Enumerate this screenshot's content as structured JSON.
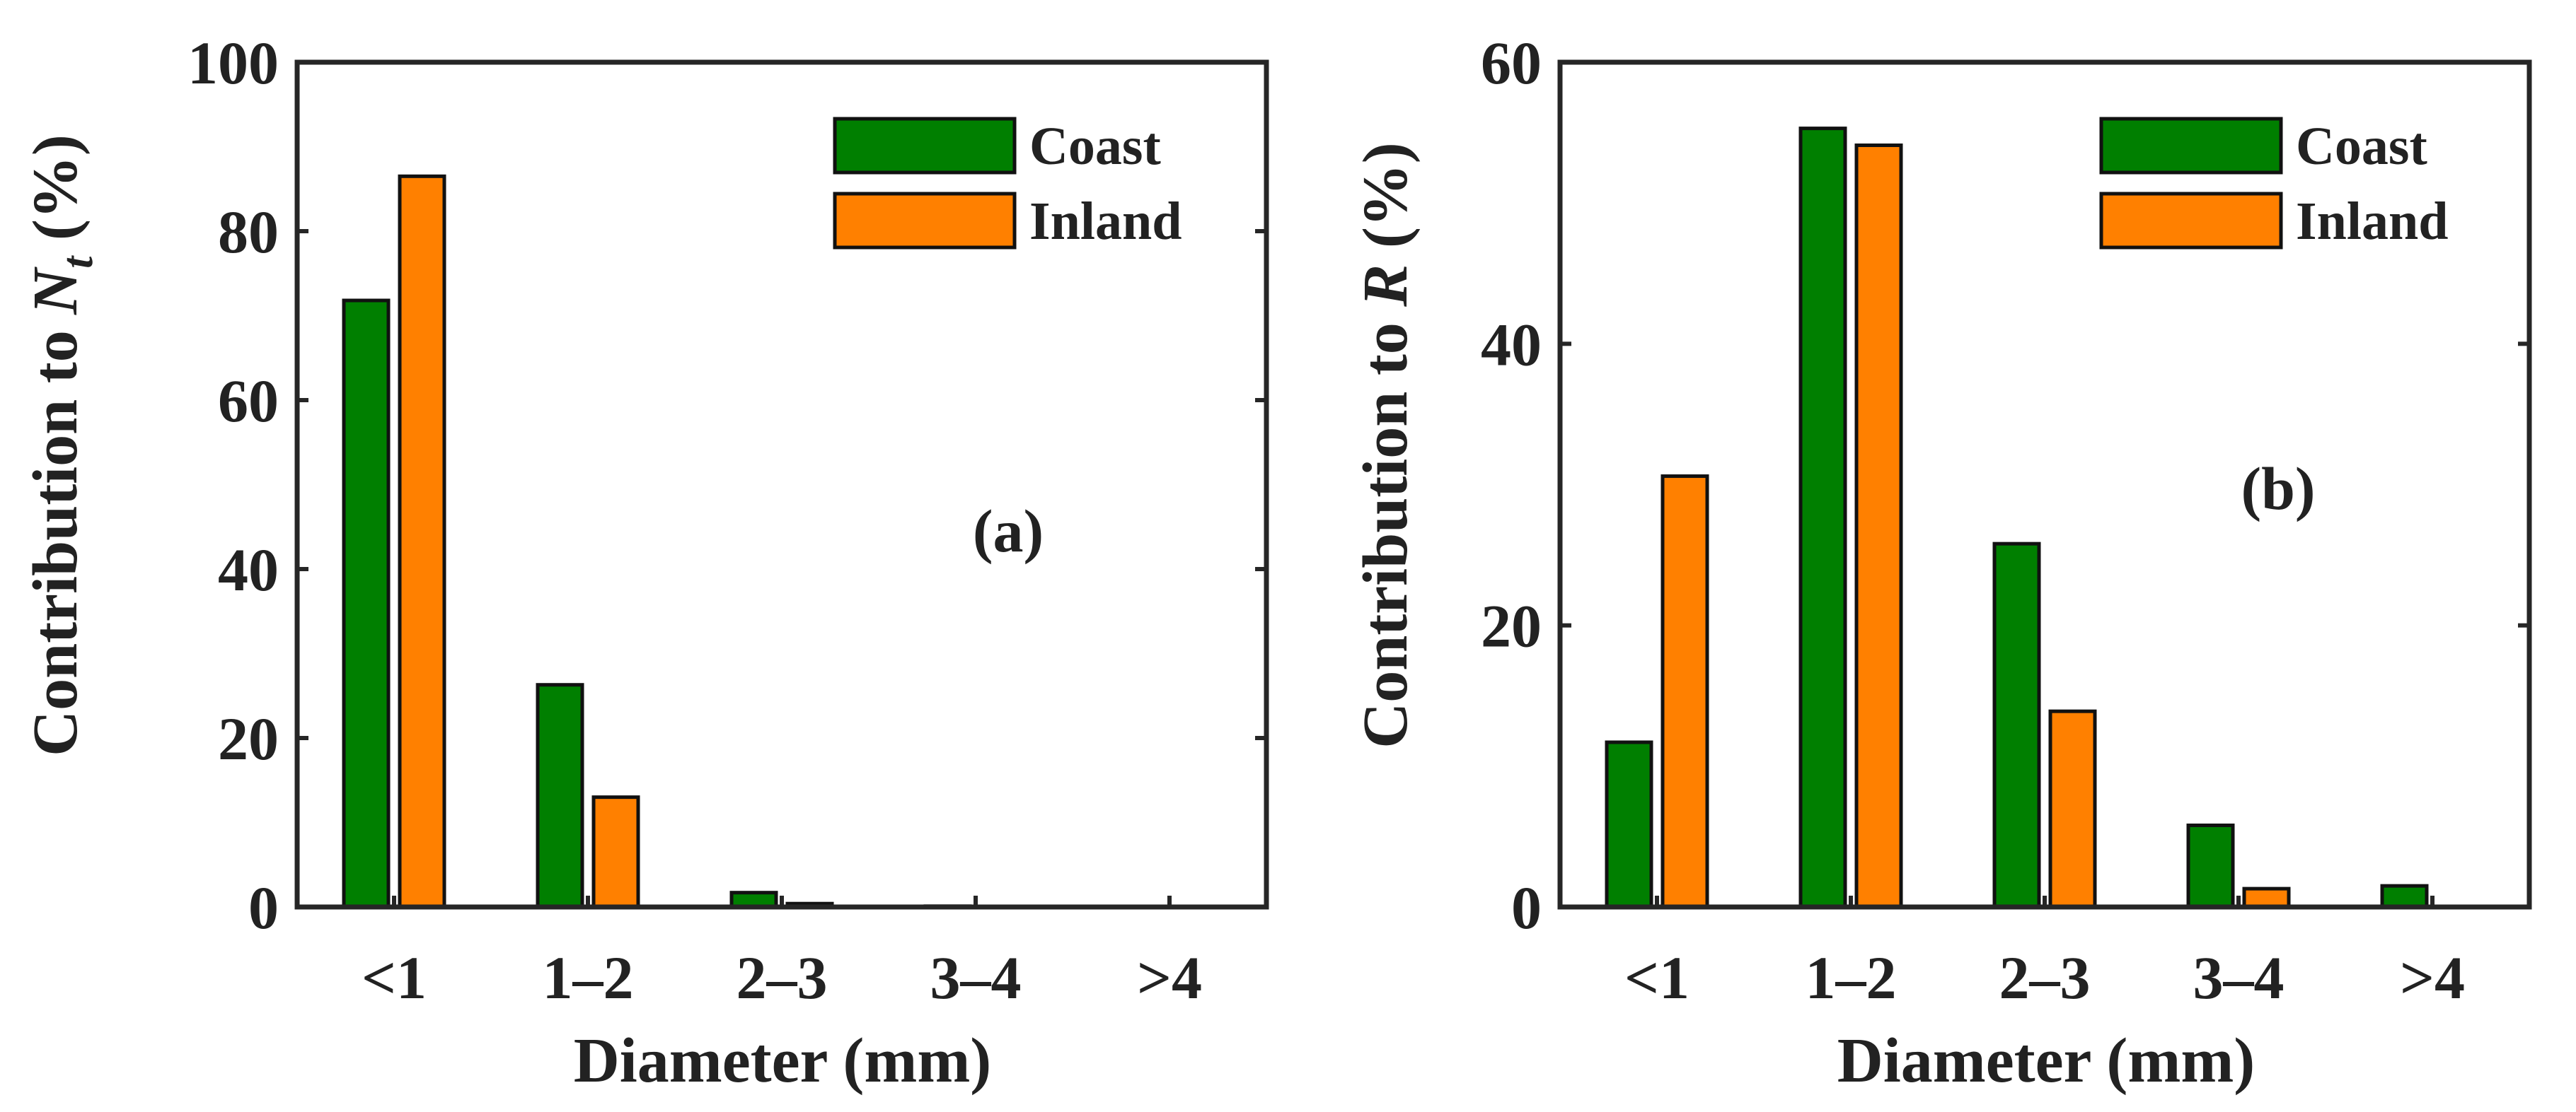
{
  "colors": {
    "coast": "#007F00",
    "inland": "#FF8000",
    "axis": "#262626"
  },
  "chart_data": [
    {
      "type": "bar",
      "panel_label": "(a)",
      "categories": [
        "<1",
        "1–2",
        "2–3",
        "3–4",
        ">4"
      ],
      "xlabel": "Diameter (mm)",
      "ylabel_prefix": "Contribution to ",
      "ylabel_var": "N",
      "ylabel_sub": "t",
      "ylabel_suffix": " (%)",
      "ylim": [
        0,
        100
      ],
      "yticks": [
        0,
        20,
        40,
        60,
        80,
        100
      ],
      "legend_position": "top-right",
      "series": [
        {
          "name": "Coast",
          "color_key": "coast",
          "values": [
            71.8,
            26.3,
            1.7,
            0.1,
            0
          ]
        },
        {
          "name": "Inland",
          "color_key": "inland",
          "values": [
            86.5,
            13.0,
            0.4,
            0,
            0
          ]
        }
      ]
    },
    {
      "type": "bar",
      "panel_label": "(b)",
      "categories": [
        "<1",
        "1–2",
        "2–3",
        "3–4",
        ">4"
      ],
      "xlabel": "Diameter (mm)",
      "ylabel_prefix": "Contribution to ",
      "ylabel_var": "R",
      "ylabel_sub": "",
      "ylabel_suffix": " (%)",
      "ylim": [
        0,
        60
      ],
      "yticks": [
        0,
        20,
        40,
        60
      ],
      "legend_position": "top-right",
      "series": [
        {
          "name": "Coast",
          "color_key": "coast",
          "values": [
            11.7,
            55.3,
            25.8,
            5.8,
            1.5
          ]
        },
        {
          "name": "Inland",
          "color_key": "inland",
          "values": [
            30.6,
            54.1,
            13.9,
            1.3,
            0
          ]
        }
      ]
    }
  ]
}
